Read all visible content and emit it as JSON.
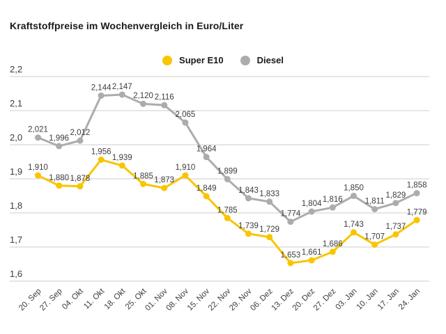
{
  "title": "Kraftstoffpreise im Wochenvergleich in Euro/Liter",
  "colors": {
    "super_e10": "#F8C500",
    "diesel": "#ACACAC",
    "grid": "#D6D6D6",
    "tick_text": "#3C3C3C",
    "label_text": "#3C3C3C",
    "title_text": "#1A1A1A",
    "background": "#FFFFFF"
  },
  "chart_data": {
    "type": "line",
    "title": "Kraftstoffpreise im Wochenvergleich in Euro/Liter",
    "xlabel": "",
    "ylabel": "",
    "ylim": [
      1.6,
      2.2
    ],
    "y_tick_step": 0.1,
    "y_ticks": [
      "2,2",
      "2,1",
      "2,0",
      "1,9",
      "1,8",
      "1,7",
      "1,6"
    ],
    "grid": true,
    "legend_position": "top-center",
    "value_labels": true,
    "decimal_separator": ",",
    "categories": [
      "20. Sep",
      "27. Sep",
      "04. Okt",
      "11. Okt",
      "18. Okt",
      "25. Okt",
      "01. Nov",
      "08. Nov",
      "15. Nov",
      "22. Nov",
      "29. Nov",
      "06. Dez",
      "13. Dez",
      "20. Dez",
      "27. Dez",
      "03. Jan",
      "10. Jan",
      "17. Jan",
      "24. Jan"
    ],
    "series": [
      {
        "name": "Super E10",
        "color": "#F8C500",
        "values": [
          1.91,
          1.88,
          1.878,
          1.956,
          1.939,
          1.885,
          1.873,
          1.91,
          1.849,
          1.785,
          1.739,
          1.729,
          1.653,
          1.661,
          1.686,
          1.743,
          1.707,
          1.737,
          1.779
        ],
        "labels": [
          "1,910",
          "1,880",
          "1,878",
          "1,956",
          "1,939",
          "1,885",
          "1,873",
          "1,910",
          "1,849",
          "1,785",
          "1,739",
          "1,729",
          "1,653",
          "1,661",
          "1,686",
          "1,743",
          "1,707",
          "1,737",
          "1,779"
        ]
      },
      {
        "name": "Diesel",
        "color": "#ACACAC",
        "values": [
          2.021,
          1.996,
          2.012,
          2.144,
          2.147,
          2.12,
          2.116,
          2.065,
          1.964,
          1.899,
          1.843,
          1.833,
          1.774,
          1.804,
          1.816,
          1.85,
          1.811,
          1.829,
          1.858
        ],
        "labels": [
          "2,021",
          "1,996",
          "2,012",
          "2,144",
          "2,147",
          "2,120",
          "2,116",
          "2,065",
          "1,964",
          "1,899",
          "1,843",
          "1,833",
          "1,774",
          "1,804",
          "1,816",
          "1,850",
          "1,811",
          "1,829",
          "1,858"
        ]
      }
    ]
  }
}
